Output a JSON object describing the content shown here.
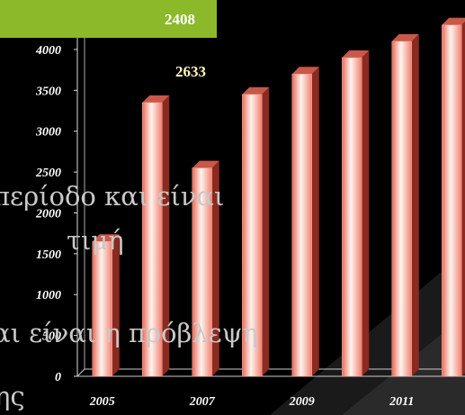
{
  "chart_data": {
    "type": "bar",
    "categories": [
      "2005",
      null,
      "2007",
      null,
      "2009",
      null,
      "2011",
      null
    ],
    "values": [
      1650,
      3350,
      2550,
      3450,
      3700,
      3900,
      4100,
      4300
    ],
    "color": "#f4a090",
    "ylim": [
      0,
      4500
    ],
    "yticks": [
      0,
      500,
      1000,
      1500,
      2000,
      2500,
      3000,
      3500,
      4000
    ]
  },
  "slide": {
    "box_label": "2408",
    "label": "2633",
    "text_lines": [
      "περίοδο και είναι",
      "τιμή",
      "αι είναι η πρόβλεψη",
      "ης"
    ]
  }
}
